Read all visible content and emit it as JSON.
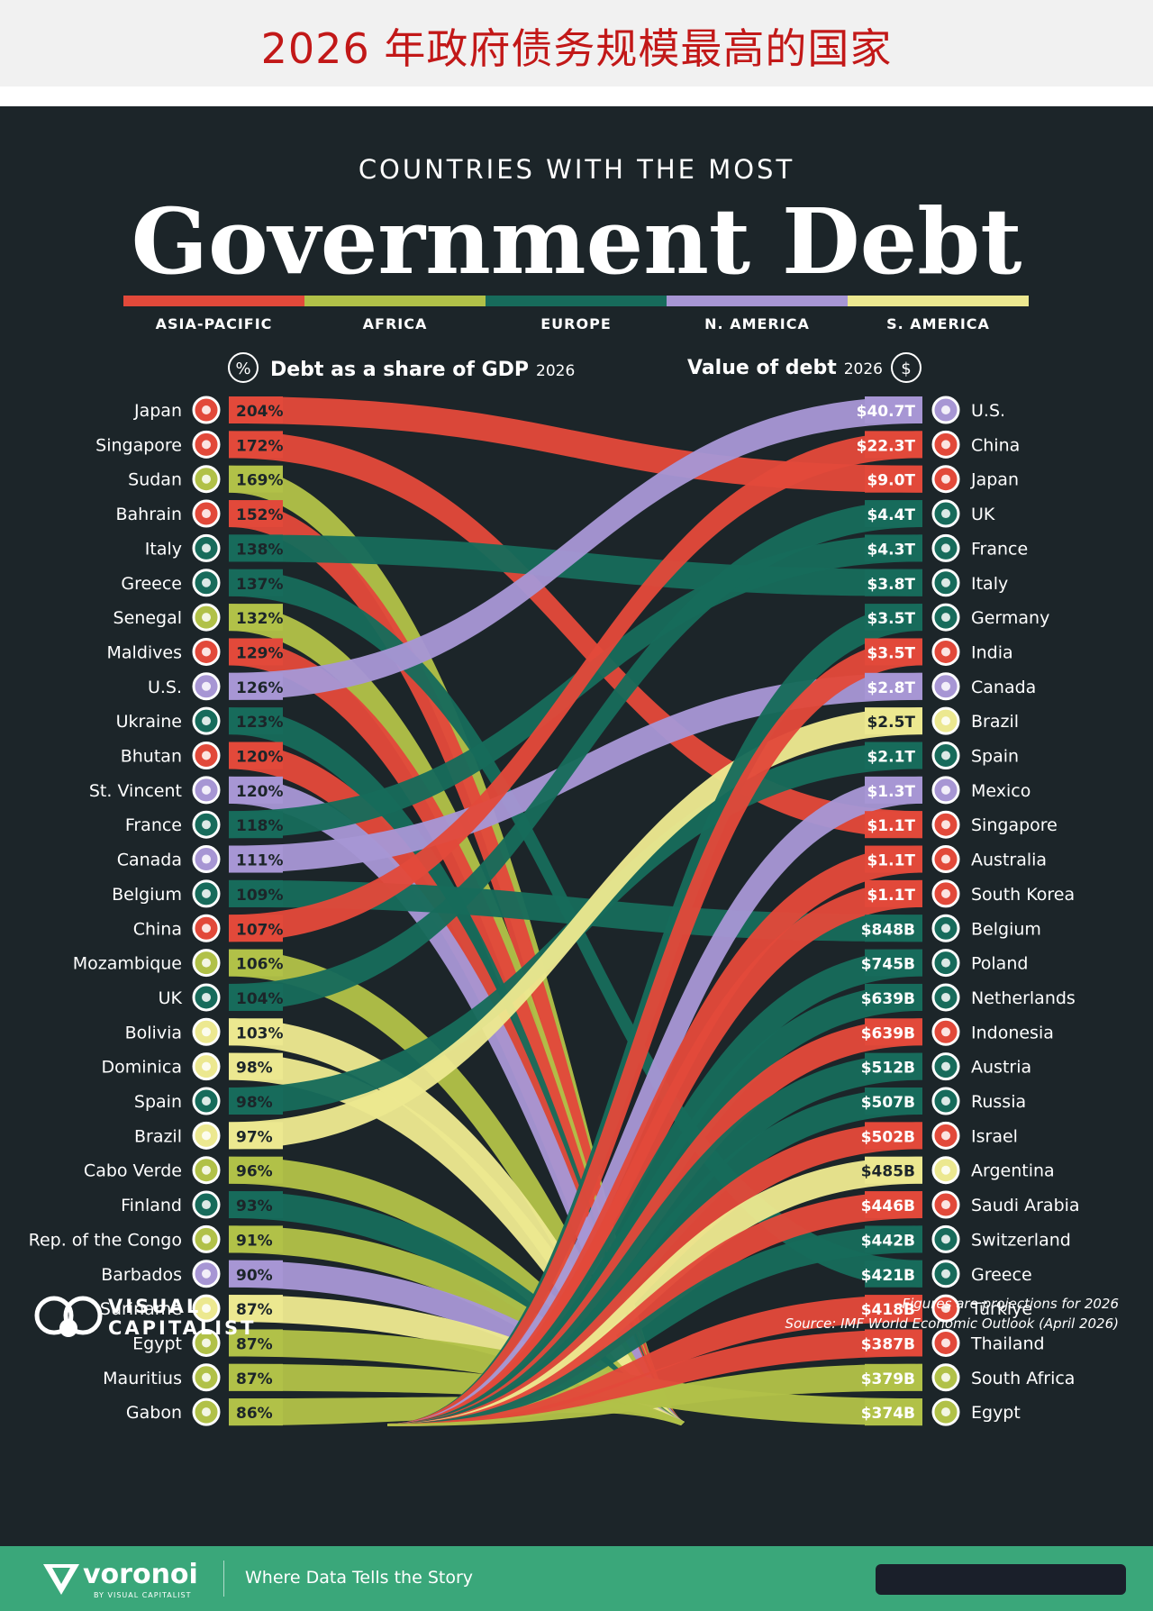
{
  "header": {
    "banner_title": "2026 年政府债务规模最高的国家"
  },
  "poster": {
    "kicker": "COUNTRIES WITH THE MOST",
    "title": "Government Debt",
    "left_heading": "Debt as a share of GDP",
    "left_heading_year": "2026",
    "right_heading": "Value of debt",
    "right_heading_year": "2026",
    "brand_line1": "VISUAL",
    "brand_line2": "CAPITALIST",
    "note": "Figures are projections for 2026",
    "source": "Source: IMF World Economic Outlook (April 2026)"
  },
  "footer": {
    "brand": "voronoi",
    "brand_sub": "BY VISUAL CAPITALIST",
    "tagline": "Where Data Tells the Story"
  },
  "colors": {
    "Asia-Pacific": "#e2493a",
    "Africa": "#b1c148",
    "Europe": "#176b5b",
    "N. America": "#a796d4",
    "S. America": "#ece890"
  },
  "chart_data": {
    "type": "bump",
    "regions": [
      {
        "name": "ASIA-PACIFIC",
        "color": "#e2493a"
      },
      {
        "name": "AFRICA",
        "color": "#b1c148"
      },
      {
        "name": "EUROPE",
        "color": "#176b5b"
      },
      {
        "name": "N. AMERICA",
        "color": "#a796d4"
      },
      {
        "name": "S. AMERICA",
        "color": "#ece890"
      }
    ],
    "debt_to_gdp": [
      {
        "country": "Japan",
        "value": "204%",
        "region": "Asia-Pacific",
        "flag": "japan-flag"
      },
      {
        "country": "Singapore",
        "value": "172%",
        "region": "Asia-Pacific",
        "flag": "singapore-flag"
      },
      {
        "country": "Sudan",
        "value": "169%",
        "region": "Africa",
        "flag": "sudan-flag"
      },
      {
        "country": "Bahrain",
        "value": "152%",
        "region": "Asia-Pacific",
        "flag": "bahrain-flag"
      },
      {
        "country": "Italy",
        "value": "138%",
        "region": "Europe",
        "flag": "italy-flag"
      },
      {
        "country": "Greece",
        "value": "137%",
        "region": "Europe",
        "flag": "greece-flag"
      },
      {
        "country": "Senegal",
        "value": "132%",
        "region": "Africa",
        "flag": "senegal-flag"
      },
      {
        "country": "Maldives",
        "value": "129%",
        "region": "Asia-Pacific",
        "flag": "maldives-flag"
      },
      {
        "country": "U.S.",
        "value": "126%",
        "region": "N. America",
        "flag": "us-flag"
      },
      {
        "country": "Ukraine",
        "value": "123%",
        "region": "Europe",
        "flag": "ukraine-flag"
      },
      {
        "country": "Bhutan",
        "value": "120%",
        "region": "Asia-Pacific",
        "flag": "bhutan-flag"
      },
      {
        "country": "St. Vincent",
        "value": "120%",
        "region": "N. America",
        "flag": "st-vincent-flag"
      },
      {
        "country": "France",
        "value": "118%",
        "region": "Europe",
        "flag": "france-flag"
      },
      {
        "country": "Canada",
        "value": "111%",
        "region": "N. America",
        "flag": "canada-flag"
      },
      {
        "country": "Belgium",
        "value": "109%",
        "region": "Europe",
        "flag": "belgium-flag"
      },
      {
        "country": "China",
        "value": "107%",
        "region": "Asia-Pacific",
        "flag": "china-flag"
      },
      {
        "country": "Mozambique",
        "value": "106%",
        "region": "Africa",
        "flag": "mozambique-flag"
      },
      {
        "country": "UK",
        "value": "104%",
        "region": "Europe",
        "flag": "uk-flag"
      },
      {
        "country": "Bolivia",
        "value": "103%",
        "region": "S. America",
        "flag": "bolivia-flag"
      },
      {
        "country": "Dominica",
        "value": "98%",
        "region": "S. America",
        "flag": "dominica-flag"
      },
      {
        "country": "Spain",
        "value": "98%",
        "region": "Europe",
        "flag": "spain-flag"
      },
      {
        "country": "Brazil",
        "value": "97%",
        "region": "S. America",
        "flag": "brazil-flag"
      },
      {
        "country": "Cabo Verde",
        "value": "96%",
        "region": "Africa",
        "flag": "cabo-verde-flag"
      },
      {
        "country": "Finland",
        "value": "93%",
        "region": "Europe",
        "flag": "finland-flag"
      },
      {
        "country": "Rep. of the Congo",
        "value": "91%",
        "region": "Africa",
        "flag": "congo-flag"
      },
      {
        "country": "Barbados",
        "value": "90%",
        "region": "N. America",
        "flag": "barbados-flag"
      },
      {
        "country": "Suriname",
        "value": "87%",
        "region": "S. America",
        "flag": "suriname-flag"
      },
      {
        "country": "Egypt",
        "value": "87%",
        "region": "Africa",
        "flag": "egypt-flag"
      },
      {
        "country": "Mauritius",
        "value": "87%",
        "region": "Africa",
        "flag": "mauritius-flag"
      },
      {
        "country": "Gabon",
        "value": "86%",
        "region": "Africa",
        "flag": "gabon-flag"
      }
    ],
    "debt_value": [
      {
        "country": "U.S.",
        "value": "$40.7T",
        "region": "N. America",
        "flag": "us-flag"
      },
      {
        "country": "China",
        "value": "$22.3T",
        "region": "Asia-Pacific",
        "flag": "china-flag"
      },
      {
        "country": "Japan",
        "value": "$9.0T",
        "region": "Asia-Pacific",
        "flag": "japan-flag"
      },
      {
        "country": "UK",
        "value": "$4.4T",
        "region": "Europe",
        "flag": "uk-flag"
      },
      {
        "country": "France",
        "value": "$4.3T",
        "region": "Europe",
        "flag": "france-flag"
      },
      {
        "country": "Italy",
        "value": "$3.8T",
        "region": "Europe",
        "flag": "italy-flag"
      },
      {
        "country": "Germany",
        "value": "$3.5T",
        "region": "Europe",
        "flag": "germany-flag"
      },
      {
        "country": "India",
        "value": "$3.5T",
        "region": "Asia-Pacific",
        "flag": "india-flag"
      },
      {
        "country": "Canada",
        "value": "$2.8T",
        "region": "N. America",
        "flag": "canada-flag"
      },
      {
        "country": "Brazil",
        "value": "$2.5T",
        "region": "S. America",
        "flag": "brazil-flag"
      },
      {
        "country": "Spain",
        "value": "$2.1T",
        "region": "Europe",
        "flag": "spain-flag"
      },
      {
        "country": "Mexico",
        "value": "$1.3T",
        "region": "N. America",
        "flag": "mexico-flag"
      },
      {
        "country": "Singapore",
        "value": "$1.1T",
        "region": "Asia-Pacific",
        "flag": "singapore-flag"
      },
      {
        "country": "Australia",
        "value": "$1.1T",
        "region": "Asia-Pacific",
        "flag": "australia-flag"
      },
      {
        "country": "South Korea",
        "value": "$1.1T",
        "region": "Asia-Pacific",
        "flag": "south-korea-flag"
      },
      {
        "country": "Belgium",
        "value": "$848B",
        "region": "Europe",
        "flag": "belgium-flag"
      },
      {
        "country": "Poland",
        "value": "$745B",
        "region": "Europe",
        "flag": "poland-flag"
      },
      {
        "country": "Netherlands",
        "value": "$639B",
        "region": "Europe",
        "flag": "netherlands-flag"
      },
      {
        "country": "Indonesia",
        "value": "$639B",
        "region": "Asia-Pacific",
        "flag": "indonesia-flag"
      },
      {
        "country": "Austria",
        "value": "$512B",
        "region": "Europe",
        "flag": "austria-flag"
      },
      {
        "country": "Russia",
        "value": "$507B",
        "region": "Europe",
        "flag": "russia-flag"
      },
      {
        "country": "Israel",
        "value": "$502B",
        "region": "Asia-Pacific",
        "flag": "israel-flag"
      },
      {
        "country": "Argentina",
        "value": "$485B",
        "region": "S. America",
        "flag": "argentina-flag"
      },
      {
        "country": "Saudi Arabia",
        "value": "$446B",
        "region": "Asia-Pacific",
        "flag": "saudi-arabia-flag"
      },
      {
        "country": "Switzerland",
        "value": "$442B",
        "region": "Europe",
        "flag": "switzerland-flag"
      },
      {
        "country": "Greece",
        "value": "$421B",
        "region": "Europe",
        "flag": "greece-flag"
      },
      {
        "country": "Türkiye",
        "value": "$418B",
        "region": "Asia-Pacific",
        "flag": "turkiye-flag"
      },
      {
        "country": "Thailand",
        "value": "$387B",
        "region": "Asia-Pacific",
        "flag": "thailand-flag"
      },
      {
        "country": "South Africa",
        "value": "$379B",
        "region": "Africa",
        "flag": "south-africa-flag"
      },
      {
        "country": "Egypt",
        "value": "$374B",
        "region": "Africa",
        "flag": "egypt-flag"
      }
    ]
  }
}
